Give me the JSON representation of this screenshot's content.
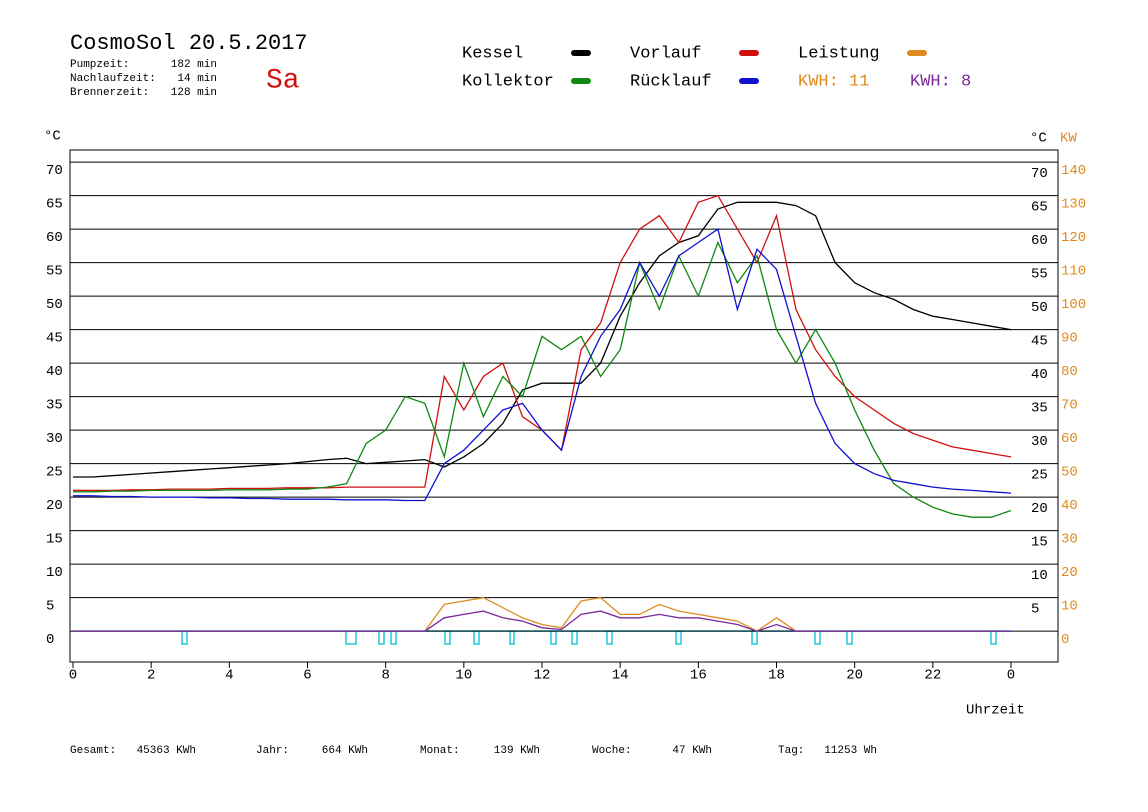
{
  "chart_data": {
    "type": "line",
    "title": "CosmoSol 20.5.2017",
    "day": "Sa",
    "info": [
      {
        "label": "Pumpzeit:",
        "value": "182 min"
      },
      {
        "label": "Nachlaufzeit:",
        "value": "14 min"
      },
      {
        "label": "Brennerzeit:",
        "value": "128 min"
      }
    ],
    "y_unit": "°C",
    "y2_unit": "KW",
    "xlabel": "Uhrzeit",
    "kwh_label": {
      "text": "KWH: 11",
      "color": "#e08a1e"
    },
    "totals": [
      {
        "label": "Gesamt:",
        "value": "45363 KWh"
      },
      {
        "label": "Jahr:",
        "value": "664 KWh"
      },
      {
        "label": "Monat:",
        "value": "139 KWh"
      },
      {
        "label": "Woche:",
        "value": "47 KWh"
      },
      {
        "label": "Tag:",
        "value": "11253 Wh"
      }
    ],
    "xlim": [
      0,
      24
    ],
    "xticks": [
      0,
      2,
      4,
      6,
      8,
      10,
      12,
      14,
      16,
      18,
      20,
      22,
      {
        "value": 24,
        "label": "0"
      }
    ],
    "ylim": [
      -4.6,
      71.8
    ],
    "yticks": [
      0,
      5,
      10,
      15,
      20,
      25,
      30,
      35,
      40,
      45,
      50,
      55,
      60,
      65,
      70
    ],
    "y2lim": [
      -9.2,
      143.6
    ],
    "y2ticks": [
      0,
      10,
      20,
      30,
      40,
      50,
      60,
      70,
      80,
      90,
      100,
      110,
      120,
      130,
      140
    ],
    "grid": true,
    "x": [
      0,
      0.5,
      1,
      1.5,
      2,
      2.5,
      3,
      3.5,
      4,
      4.5,
      5,
      5.5,
      6,
      6.5,
      7,
      7.5,
      8,
      8.5,
      9,
      9.5,
      10,
      10.5,
      11,
      11.5,
      12,
      12.5,
      13,
      13.5,
      14,
      14.5,
      15,
      15.5,
      16,
      16.5,
      17,
      17.5,
      18,
      18.5,
      19,
      19.5,
      20,
      20.5,
      21,
      21.5,
      22,
      22.5,
      23,
      23.5,
      24
    ],
    "series": [
      {
        "name": "Kessel",
        "color": "#000000",
        "values": [
          23,
          23,
          23.2,
          23.4,
          23.6,
          23.8,
          24,
          24.2,
          24.4,
          24.6,
          24.8,
          25,
          25.3,
          25.6,
          25.8,
          25,
          25.2,
          25.4,
          25.6,
          24.5,
          26,
          28,
          31,
          36,
          37,
          37,
          37,
          40,
          47,
          52,
          56,
          58,
          59,
          63,
          64,
          64,
          64,
          63.5,
          62,
          55,
          52,
          50.5,
          49.5,
          48,
          47,
          46.5,
          46,
          45.5,
          45
        ]
      },
      {
        "name": "Vorlauf",
        "color": "#d01010",
        "values": [
          21,
          21,
          21,
          21.1,
          21.1,
          21.2,
          21.2,
          21.2,
          21.3,
          21.3,
          21.3,
          21.4,
          21.4,
          21.4,
          21.5,
          21.5,
          21.5,
          21.5,
          21.5,
          38,
          33,
          38,
          40,
          32,
          30,
          27,
          42,
          46,
          55,
          60,
          62,
          58,
          64,
          65,
          60,
          55,
          62,
          48,
          42,
          38,
          35,
          33,
          31,
          29.5,
          28.5,
          27.5,
          27,
          26.5,
          26
        ]
      },
      {
        "name": "Leistung",
        "color": "#e08a1e",
        "axis": "y2",
        "values": [
          0,
          0,
          0,
          0,
          0,
          0,
          0,
          0,
          0,
          0,
          0,
          0,
          0,
          0,
          0,
          0,
          0,
          0,
          0,
          8,
          9,
          10,
          7,
          4,
          2,
          1,
          9,
          10,
          5,
          5,
          8,
          6,
          5,
          4,
          3,
          0,
          4,
          0,
          0,
          0,
          0,
          0,
          0,
          0,
          0,
          0,
          0,
          0,
          0
        ]
      },
      {
        "name": "Kollektor",
        "color": "#118811",
        "values": [
          20.8,
          20.8,
          20.9,
          20.9,
          21,
          21,
          21,
          21,
          21.1,
          21.1,
          21.1,
          21.2,
          21.2,
          21.5,
          22,
          28,
          30,
          35,
          34,
          26,
          40,
          32,
          38,
          35,
          44,
          42,
          44,
          38,
          42,
          55,
          48,
          56,
          50,
          58,
          52,
          56,
          45,
          40,
          45,
          40,
          33,
          27,
          22,
          20,
          18.5,
          17.5,
          17,
          17,
          18
        ]
      },
      {
        "name": "Rücklauf",
        "color": "#1010d0",
        "values": [
          20.2,
          20.2,
          20.1,
          20.1,
          20,
          20,
          20,
          19.9,
          19.9,
          19.8,
          19.8,
          19.7,
          19.7,
          19.7,
          19.6,
          19.6,
          19.6,
          19.5,
          19.5,
          25,
          27,
          30,
          33,
          34,
          30,
          27,
          38,
          44,
          48,
          55,
          50,
          56,
          58,
          60,
          48,
          57,
          54,
          44,
          34,
          28,
          25,
          23.5,
          22.5,
          22,
          21.5,
          21.2,
          21,
          20.8,
          20.6
        ]
      },
      {
        "name": "KWH: 8",
        "color": "#7a2a9a",
        "axis": "y2",
        "values": [
          0,
          0,
          0,
          0,
          0,
          0,
          0,
          0,
          0,
          0,
          0,
          0,
          0,
          0,
          0,
          0,
          0,
          0,
          0,
          4,
          5,
          6,
          4,
          3,
          1,
          0.5,
          5,
          6,
          4,
          4,
          5,
          4,
          4,
          3,
          2,
          0,
          2,
          0,
          0,
          0,
          0,
          0,
          0,
          0,
          0,
          0,
          0,
          0,
          0
        ]
      }
    ]
  }
}
